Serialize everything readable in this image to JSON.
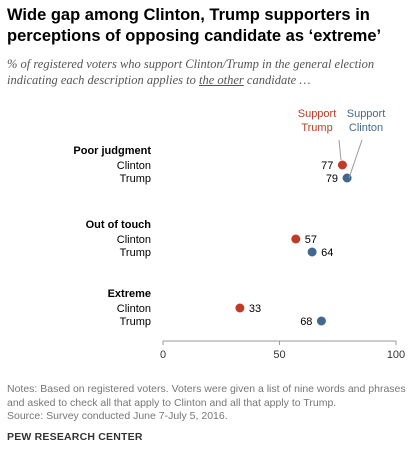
{
  "title": "Wide gap among Clinton, Trump supporters in perceptions of opposing candidate as ‘extreme’",
  "subtitle": {
    "before": "% of registered voters who support Clinton/Trump in the general election indicating each description applies to ",
    "underlined": "the other",
    "after": " candidate …"
  },
  "notes": "Notes: Based on registered voters. Voters were given a list of nine words and phrases and asked to check all that apply to Clinton and all that apply to Trump.",
  "source": "Source: Survey conducted June 7-July 5, 2016.",
  "organization": "PEW RESEARCH CENTER",
  "colors": {
    "support_trump": "#bf3b27",
    "support_clinton": "#41698f",
    "axis": "#999999"
  },
  "chart_data": {
    "type": "scatter",
    "xlim": [
      0,
      100
    ],
    "ticks": [
      0,
      50,
      100
    ],
    "legend": [
      {
        "line1": "Support",
        "line2": "Trump",
        "color": "#bf3b27"
      },
      {
        "line1": "Support",
        "line2": "Clinton",
        "color": "#41698f"
      }
    ],
    "groups": [
      {
        "category": "Poor judgment",
        "rows": [
          {
            "label": "Clinton",
            "value": 77,
            "series": "Support Trump"
          },
          {
            "label": "Trump",
            "value": 79,
            "series": "Support Clinton"
          }
        ]
      },
      {
        "category": "Out of touch",
        "rows": [
          {
            "label": "Clinton",
            "value": 57,
            "series": "Support Trump"
          },
          {
            "label": "Trump",
            "value": 64,
            "series": "Support Clinton"
          }
        ]
      },
      {
        "category": "Extreme",
        "rows": [
          {
            "label": "Clinton",
            "value": 33,
            "series": "Support Trump"
          },
          {
            "label": "Trump",
            "value": 68,
            "series": "Support Clinton"
          }
        ]
      }
    ]
  }
}
